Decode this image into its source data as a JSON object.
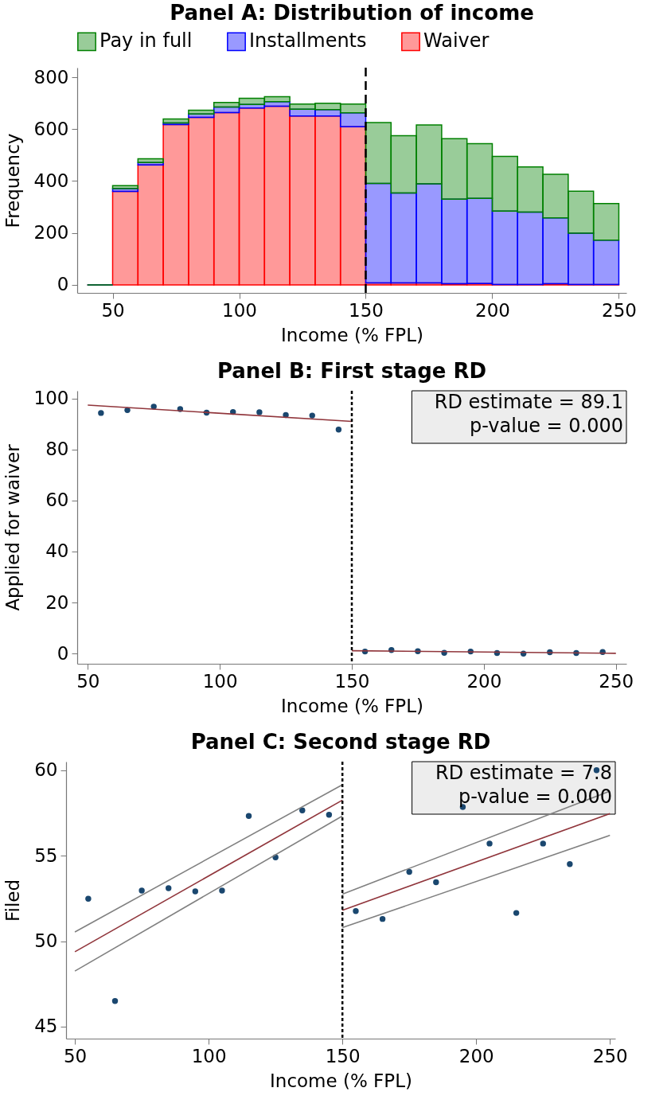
{
  "chart_data": [
    {
      "type": "bar",
      "title": "Panel A: Distribution of income",
      "xlabel": "Income (% FPL)",
      "ylabel": "Frequency",
      "stacked": true,
      "legend": "top",
      "x": [
        45,
        55,
        65,
        75,
        85,
        95,
        105,
        115,
        125,
        135,
        145,
        155,
        165,
        175,
        185,
        195,
        205,
        215,
        225,
        235,
        245
      ],
      "series": [
        {
          "name": "Waiver",
          "color": "#ff0000",
          "values": [
            0,
            360,
            462,
            618,
            645,
            664,
            681,
            688,
            651,
            651,
            609,
            7,
            7,
            7,
            4,
            5,
            1,
            1,
            4,
            1,
            1
          ]
        },
        {
          "name": "Installments",
          "color": "#0000ff",
          "values": [
            0,
            11,
            9,
            6,
            13,
            21,
            14,
            18,
            26,
            24,
            54,
            384,
            347,
            382,
            326,
            328,
            283,
            279,
            254,
            198,
            171
          ]
        },
        {
          "name": "Pay in full",
          "color": "#008000",
          "values": [
            0,
            11,
            15,
            15,
            15,
            18,
            24,
            19,
            20,
            25,
            34,
            234,
            221,
            227,
            233,
            211,
            211,
            174,
            168,
            162,
            141
          ]
        }
      ],
      "xlim": [
        36,
        253
      ],
      "xticks": [
        50,
        100,
        150,
        200,
        250
      ],
      "ylim": [
        -31,
        837
      ],
      "yticks": [
        0,
        200,
        400,
        600,
        800
      ],
      "ref_lines": [
        {
          "axis": "x",
          "value": 150,
          "line_style": "dashed",
          "color": "#000000"
        }
      ]
    },
    {
      "type": "scatter",
      "title": "Panel B: First stage RD",
      "xlabel": "Income (% FPL)",
      "ylabel": "Applied for waiver",
      "series": [
        {
          "color": "#1a476f",
          "marker": "circle",
          "x": [
            55,
            65,
            75,
            85,
            95,
            105,
            115,
            125,
            135,
            145,
            155,
            165,
            175,
            185,
            195,
            205,
            215,
            225,
            235,
            245
          ],
          "values": [
            94.3,
            95.4,
            96.8,
            95.8,
            94.4,
            94.7,
            94.6,
            93.5,
            93.3,
            87.8,
            0.8,
            1.4,
            0.9,
            0.3,
            0.8,
            0.2,
            0.0,
            0.5,
            0.2,
            0.6
          ]
        },
        {
          "type": "line",
          "color": "#90353b",
          "x": [
            50,
            150
          ],
          "values": [
            97.4,
            91.0
          ]
        },
        {
          "type": "line",
          "color": "#90353b",
          "x": [
            150,
            250
          ],
          "values": [
            1.1,
            0.1
          ]
        }
      ],
      "xlim": [
        46,
        254
      ],
      "xticks": [
        50,
        100,
        150,
        200,
        250
      ],
      "ylim": [
        -4,
        103
      ],
      "yticks": [
        0,
        20,
        40,
        60,
        80,
        100
      ],
      "ref_lines": [
        {
          "axis": "x",
          "value": 150,
          "line_style": "dotted",
          "color": "#000000"
        }
      ],
      "annotations": [
        "RD estimate = 89.1",
        "p-value = 0.000"
      ]
    },
    {
      "type": "scatter",
      "title": "Panel C: Second stage RD",
      "xlabel": "Income (% FPL)",
      "ylabel": "Filed",
      "series": [
        {
          "color": "#1a476f",
          "marker": "circle",
          "x": [
            55,
            65,
            75,
            85,
            95,
            105,
            115,
            125,
            135,
            145,
            155,
            165,
            175,
            185,
            195,
            205,
            215,
            225,
            235,
            245
          ],
          "values": [
            52.48,
            46.5,
            52.96,
            53.1,
            52.91,
            52.96,
            57.32,
            54.9,
            57.65,
            57.39,
            51.76,
            51.3,
            54.05,
            53.45,
            57.85,
            55.71,
            51.65,
            55.71,
            54.51,
            60.0
          ]
        },
        {
          "type": "line",
          "color": "#90353b",
          "x": [
            50,
            150
          ],
          "values": [
            49.38,
            58.25
          ]
        },
        {
          "type": "line",
          "color": "#808080",
          "x": [
            50,
            150
          ],
          "values": [
            50.54,
            59.15
          ]
        },
        {
          "type": "line",
          "color": "#808080",
          "x": [
            50,
            150
          ],
          "values": [
            48.25,
            57.32
          ]
        },
        {
          "type": "line",
          "color": "#90353b",
          "x": [
            150,
            250
          ],
          "values": [
            51.81,
            57.46
          ]
        },
        {
          "type": "line",
          "color": "#808080",
          "x": [
            150,
            250
          ],
          "values": [
            52.75,
            58.78
          ]
        },
        {
          "type": "line",
          "color": "#808080",
          "x": [
            150,
            250
          ],
          "values": [
            50.79,
            56.19
          ]
        }
      ],
      "xlim": [
        46.7,
        252
      ],
      "xticks": [
        50,
        100,
        150,
        200,
        250
      ],
      "ylim": [
        44.3,
        60.5
      ],
      "yticks": [
        45,
        50,
        55,
        60
      ],
      "ref_lines": [
        {
          "axis": "x",
          "value": 150,
          "line_style": "dotted",
          "color": "#000000"
        }
      ],
      "annotations": [
        "RD estimate = 7.8",
        "p-value = 0.000"
      ]
    }
  ]
}
